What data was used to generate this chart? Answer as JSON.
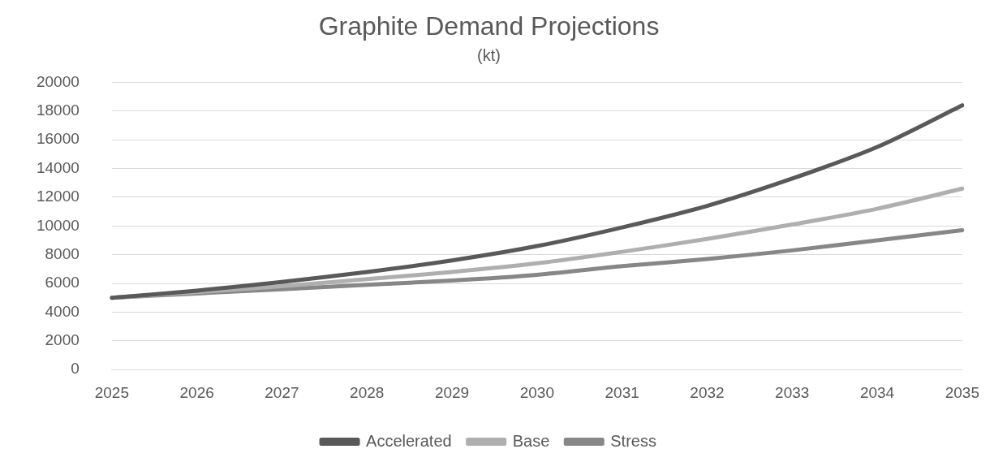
{
  "chart_data": {
    "type": "line",
    "title": "Graphite Demand Projections",
    "subtitle": "(kt)",
    "categories": [
      "2025",
      "2026",
      "2027",
      "2028",
      "2029",
      "2030",
      "2031",
      "2032",
      "2033",
      "2034",
      "2035"
    ],
    "series": [
      {
        "name": "Accelerated",
        "color": "#595959",
        "values": [
          5000,
          5500,
          6100,
          6800,
          7600,
          8600,
          9900,
          11400,
          13300,
          15500,
          18400
        ]
      },
      {
        "name": "Base",
        "color": "#afafaf",
        "values": [
          5000,
          5400,
          5800,
          6300,
          6800,
          7400,
          8200,
          9100,
          10100,
          11200,
          12600
        ]
      },
      {
        "name": "Stress",
        "color": "#878787",
        "values": [
          5000,
          5300,
          5600,
          5900,
          6200,
          6600,
          7200,
          7700,
          8300,
          9000,
          9700
        ]
      }
    ],
    "ylim": [
      0,
      20000
    ],
    "yticks": [
      0,
      2000,
      4000,
      6000,
      8000,
      10000,
      12000,
      14000,
      16000,
      18000,
      20000
    ],
    "grid": "y",
    "legend": "bottom",
    "marker": "none",
    "line_style": "solid"
  }
}
